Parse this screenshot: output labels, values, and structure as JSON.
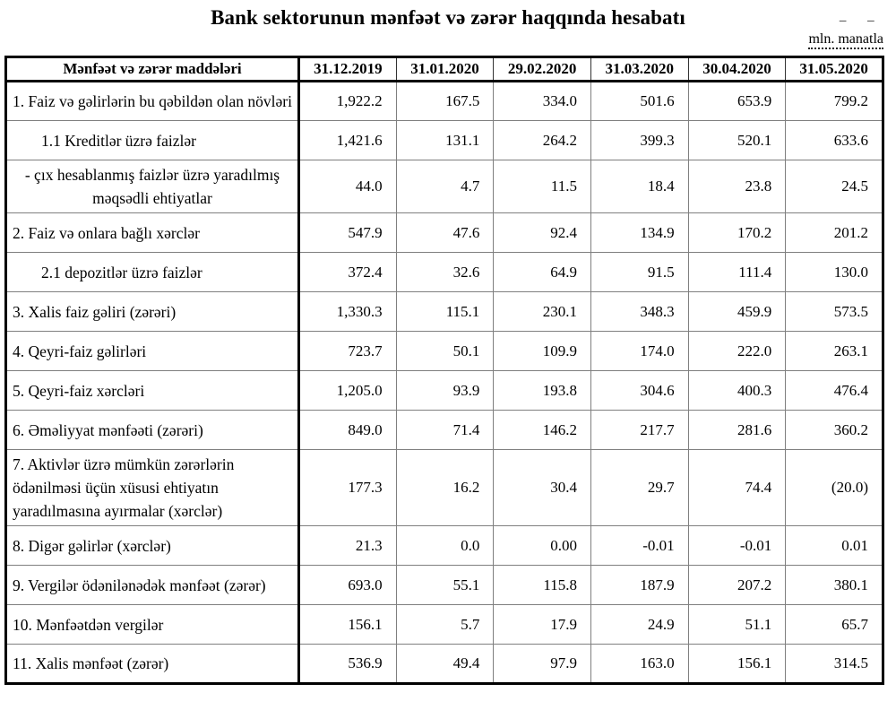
{
  "title": "Bank sektorunun mənfəət və zərər haqqında hesabatı",
  "unit_note": "mln. manatla",
  "unit_note_marks": "¯ ¯",
  "colors": {
    "background": "#ffffff",
    "text": "#000000",
    "outer_border": "#000000",
    "inner_border": "#7f7f7f"
  },
  "table": {
    "header": [
      "Mənfəət və zərər maddələri",
      "31.12.2019",
      "31.01.2020",
      "29.02.2020",
      "31.03.2020",
      "30.04.2020",
      "31.05.2020"
    ],
    "rows": [
      {
        "label": "1. Faiz və gəlirlərin bu qəbildən olan növləri",
        "style": "main",
        "values": [
          "1,922.2",
          "167.5",
          "334.0",
          "501.6",
          "653.9",
          "799.2"
        ]
      },
      {
        "label": "1.1 Kreditlər üzrə faizlər",
        "style": "indent",
        "values": [
          "1,421.6",
          "131.1",
          "264.2",
          "399.3",
          "520.1",
          "633.6"
        ]
      },
      {
        "label": "-  çıx hesablanmış faizlər üzrə yaradılmış məqsədli ehtiyatlar",
        "style": "center",
        "values": [
          "44.0",
          "4.7",
          "11.5",
          "18.4",
          "23.8",
          "24.5"
        ]
      },
      {
        "label": "2. Faiz və onlara bağlı xərclər",
        "style": "main",
        "values": [
          "547.9",
          "47.6",
          "92.4",
          "134.9",
          "170.2",
          "201.2"
        ]
      },
      {
        "label": "2.1 depozitlər üzrə faizlər",
        "style": "indent",
        "values": [
          "372.4",
          "32.6",
          "64.9",
          "91.5",
          "111.4",
          "130.0"
        ]
      },
      {
        "label": "3. Xalis faiz gəliri (zərəri)",
        "style": "main",
        "values": [
          "1,330.3",
          "115.1",
          "230.1",
          "348.3",
          "459.9",
          "573.5"
        ]
      },
      {
        "label": "4. Qeyri-faiz gəlirləri",
        "style": "main",
        "values": [
          "723.7",
          "50.1",
          "109.9",
          "174.0",
          "222.0",
          "263.1"
        ]
      },
      {
        "label": "5. Qeyri-faiz xərcləri",
        "style": "main",
        "values": [
          "1,205.0",
          "93.9",
          "193.8",
          "304.6",
          "400.3",
          "476.4"
        ]
      },
      {
        "label": "6. Əməliyyat mənfəəti (zərəri)",
        "style": "main",
        "values": [
          "849.0",
          "71.4",
          "146.2",
          "217.7",
          "281.6",
          "360.2"
        ]
      },
      {
        "label": "7. Aktivlər üzrə mümkün zərərlərin ödənilməsi üçün xüsusi ehtiyatın yaradılmasına ayırmalar (xərclər)",
        "style": "main",
        "values": [
          "177.3",
          "16.2",
          "30.4",
          "29.7",
          "74.4",
          "(20.0)"
        ]
      },
      {
        "label": "8. Digər gəlirlər (xərclər)",
        "style": "main",
        "values": [
          "21.3",
          "0.0",
          "0.00",
          "-0.01",
          "-0.01",
          "0.01"
        ]
      },
      {
        "label": "9. Vergilər ödənilənədək mənfəət (zərər)",
        "style": "main",
        "values": [
          "693.0",
          "55.1",
          "115.8",
          "187.9",
          "207.2",
          "380.1"
        ]
      },
      {
        "label": "10. Mənfəətdən vergilər",
        "style": "main",
        "values": [
          "156.1",
          "5.7",
          "17.9",
          "24.9",
          "51.1",
          "65.7"
        ]
      },
      {
        "label": "11. Xalis mənfəət (zərər)",
        "style": "main",
        "values": [
          "536.9",
          "49.4",
          "97.9",
          "163.0",
          "156.1",
          "314.5"
        ]
      }
    ]
  }
}
